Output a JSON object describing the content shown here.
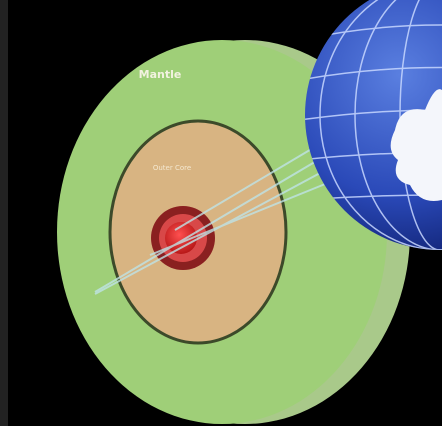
{
  "labels": {
    "mantle": "Mantle",
    "outer_core": "Outer Core"
  }
}
